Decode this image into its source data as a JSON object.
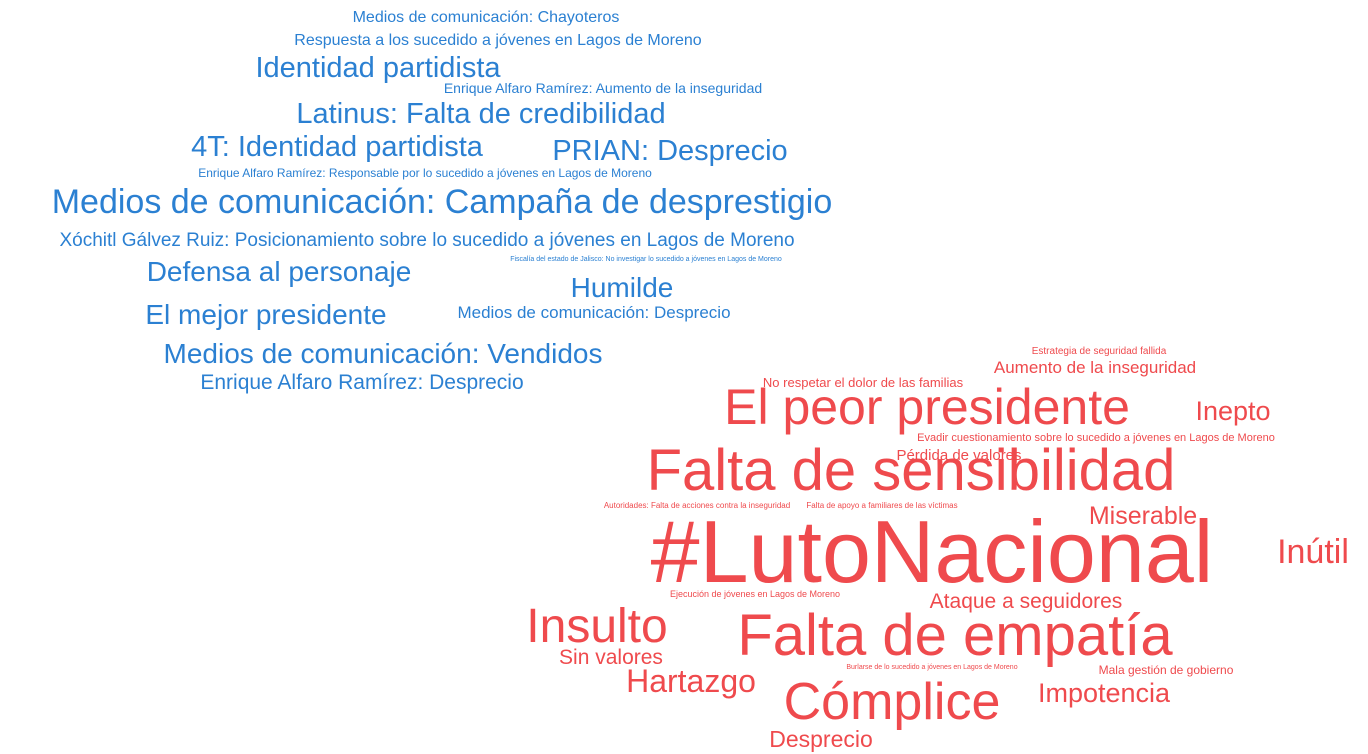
{
  "words": {
    "blue": [
      "Medios de comunicación: Chayoteros",
      "Respuesta a los sucedido a jóvenes en Lagos de Moreno",
      "Identidad partidista",
      "Enrique Alfaro Ramírez: Aumento de la inseguridad",
      "Latinus: Falta de credibilidad",
      "4T: Identidad partidista",
      "PRIAN: Desprecio",
      "Enrique Alfaro Ramírez: Responsable por lo sucedido a jóvenes en Lagos de Moreno",
      "Medios de comunicación: Campaña de desprestigio",
      "Xóchitl Gálvez Ruiz: Posicionamiento sobre lo sucedido a jóvenes en Lagos de Moreno",
      "Defensa al personaje",
      "Fiscalía del estado de Jalisco: No investigar lo sucedido a jóvenes en Lagos de Moreno",
      "Humilde",
      "El mejor presidente",
      "Medios de comunicación: Desprecio",
      "Medios de comunicación: Vendidos",
      "Enrique Alfaro Ramírez: Desprecio"
    ],
    "red": [
      "Estrategia de seguridad fallida",
      "Aumento de la inseguridad",
      "No respetar el dolor de las familias",
      "El peor presidente",
      "Inepto",
      "Evadir cuestionamiento sobre lo sucedido a jóvenes en Lagos de Moreno",
      "Pérdida de valores",
      "Falta de sensibilidad",
      "Autoridades: Falta de acciones contra la inseguridad",
      "Falta de apoyo a familiares de las víctimas",
      "Miserable",
      "#LutoNacional",
      "Inútil",
      "Ejecución de jóvenes en Lagos de Moreno",
      "Ataque a seguidores",
      "Insulto",
      "Falta de empatía",
      "Sin valores",
      "Burlarse de lo sucedido a jóvenes en Lagos de Moreno",
      "Mala gestión de gobierno",
      "Hartazgo",
      "Cómplice",
      "Impotencia",
      "Desprecio"
    ]
  }
}
